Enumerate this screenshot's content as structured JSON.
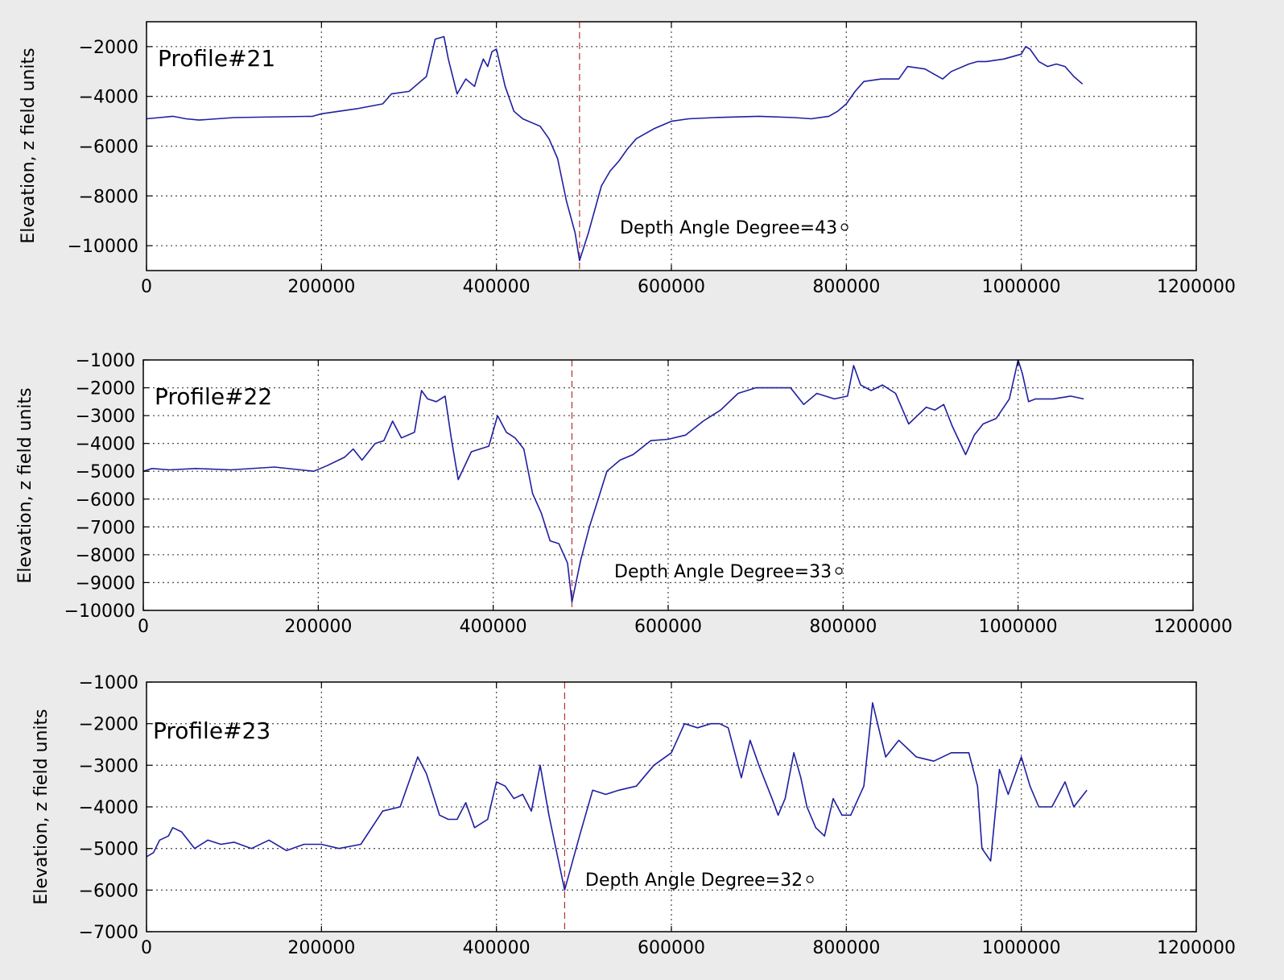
{
  "chart_data": [
    {
      "type": "line",
      "title": "Profile#21",
      "ylabel": "Elevation, z field units",
      "xlabel": "",
      "xlim": [
        0,
        1200000
      ],
      "ylim": [
        -11000,
        -1000
      ],
      "xticks": [
        "0",
        "200000",
        "400000",
        "600000",
        "800000",
        "1000000",
        "1200000"
      ],
      "yticks": [
        "−2000",
        "−4000",
        "−6000",
        "−8000",
        "−10000"
      ],
      "ytick_values": [
        -2000,
        -4000,
        -6000,
        -8000,
        -10000
      ],
      "grid": true,
      "vline_x": 495000,
      "annotation": "Depth Angle Degree=43",
      "series": [
        {
          "color": "#1f1fa0",
          "x": [
            0,
            15000,
            30000,
            45000,
            60000,
            100000,
            190000,
            200000,
            240000,
            270000,
            280000,
            300000,
            320000,
            330000,
            340000,
            345000,
            355000,
            365000,
            375000,
            380000,
            385000,
            390000,
            395000,
            400000,
            410000,
            420000,
            430000,
            450000,
            460000,
            470000,
            480000,
            490000,
            495000,
            505000,
            520000,
            530000,
            540000,
            550000,
            560000,
            580000,
            600000,
            620000,
            650000,
            700000,
            740000,
            760000,
            780000,
            790000,
            800000,
            810000,
            820000,
            840000,
            860000,
            870000,
            890000,
            900000,
            910000,
            920000,
            940000,
            950000,
            960000,
            980000,
            1000000,
            1005000,
            1010000,
            1020000,
            1030000,
            1040000,
            1050000,
            1060000,
            1070000
          ],
          "y": [
            -4900,
            -4850,
            -4800,
            -4900,
            -4950,
            -4850,
            -4800,
            -4700,
            -4500,
            -4300,
            -3900,
            -3800,
            -3200,
            -1700,
            -1600,
            -2500,
            -3900,
            -3300,
            -3600,
            -3000,
            -2500,
            -2800,
            -2200,
            -2100,
            -3600,
            -4600,
            -4900,
            -5200,
            -5700,
            -6500,
            -8200,
            -9500,
            -10600,
            -9500,
            -7600,
            -7000,
            -6600,
            -6100,
            -5700,
            -5300,
            -5000,
            -4900,
            -4850,
            -4800,
            -4850,
            -4900,
            -4800,
            -4600,
            -4300,
            -3800,
            -3400,
            -3300,
            -3300,
            -2800,
            -2900,
            -3100,
            -3300,
            -3000,
            -2700,
            -2600,
            -2600,
            -2500,
            -2300,
            -2000,
            -2100,
            -2600,
            -2800,
            -2700,
            -2800,
            -3200,
            -3500
          ]
        }
      ]
    },
    {
      "type": "line",
      "title": "Profile#22",
      "ylabel": "Elevation, z field units",
      "xlabel": "",
      "xlim": [
        0,
        1200000
      ],
      "ylim": [
        -10000,
        -1000
      ],
      "xticks": [
        "0",
        "200000",
        "400000",
        "600000",
        "800000",
        "1000000",
        "1200000"
      ],
      "yticks": [
        "−1000",
        "−2000",
        "−3000",
        "−4000",
        "−5000",
        "−6000",
        "−7000",
        "−8000",
        "−9000",
        "−10000"
      ],
      "ytick_values": [
        -1000,
        -2000,
        -3000,
        -4000,
        -5000,
        -6000,
        -7000,
        -8000,
        -9000,
        -10000
      ],
      "grid": true,
      "vline_x": 490000,
      "annotation": "Depth Angle Degree=33",
      "series": [
        {
          "color": "#1f1fa0",
          "x": [
            0,
            10000,
            30000,
            60000,
            100000,
            150000,
            180000,
            195000,
            210000,
            230000,
            240000,
            250000,
            265000,
            275000,
            285000,
            295000,
            310000,
            318000,
            325000,
            335000,
            345000,
            352000,
            360000,
            375000,
            395000,
            405000,
            415000,
            425000,
            435000,
            445000,
            455000,
            465000,
            475000,
            485000,
            490000,
            500000,
            510000,
            520000,
            530000,
            545000,
            560000,
            580000,
            600000,
            620000,
            640000,
            660000,
            680000,
            700000,
            720000,
            740000,
            755000,
            770000,
            790000,
            805000,
            812000,
            820000,
            832000,
            845000,
            860000,
            875000,
            885000,
            895000,
            905000,
            915000,
            925000,
            940000,
            950000,
            960000,
            975000,
            990000,
            1000000,
            1005000,
            1012000,
            1020000,
            1040000,
            1060000,
            1075000
          ],
          "y": [
            -5000,
            -4900,
            -4950,
            -4900,
            -4950,
            -4850,
            -4950,
            -5000,
            -4800,
            -4500,
            -4200,
            -4600,
            -4000,
            -3900,
            -3200,
            -3800,
            -3600,
            -2100,
            -2400,
            -2500,
            -2300,
            -3800,
            -5300,
            -4300,
            -4100,
            -3000,
            -3600,
            -3800,
            -4200,
            -5800,
            -6500,
            -7500,
            -7600,
            -8300,
            -9700,
            -8200,
            -7000,
            -6000,
            -5000,
            -4600,
            -4400,
            -3900,
            -3850,
            -3700,
            -3200,
            -2800,
            -2200,
            -2000,
            -2000,
            -2000,
            -2600,
            -2200,
            -2400,
            -2300,
            -1200,
            -1900,
            -2100,
            -1900,
            -2200,
            -3300,
            -3000,
            -2700,
            -2800,
            -2600,
            -3400,
            -4400,
            -3700,
            -3300,
            -3100,
            -2400,
            -1000,
            -1500,
            -2500,
            -2400,
            -2400,
            -2300,
            -2400
          ]
        }
      ]
    },
    {
      "type": "line",
      "title": "Profile#23",
      "ylabel": "Elevation, z field units",
      "xlabel": "",
      "xlim": [
        0,
        1200000
      ],
      "ylim": [
        -7000,
        -1000
      ],
      "xticks": [
        "0",
        "200000",
        "400000",
        "600000",
        "800000",
        "1000000",
        "1200000"
      ],
      "yticks": [
        "−1000",
        "−2000",
        "−3000",
        "−4000",
        "−5000",
        "−6000",
        "−7000"
      ],
      "ytick_values": [
        -1000,
        -2000,
        -3000,
        -4000,
        -5000,
        -6000,
        -7000
      ],
      "grid": true,
      "vline_x": 478000,
      "annotation": "Depth Angle Degree=32",
      "series": [
        {
          "color": "#1f1fa0",
          "x": [
            0,
            8000,
            15000,
            25000,
            30000,
            40000,
            55000,
            70000,
            85000,
            100000,
            120000,
            140000,
            160000,
            180000,
            200000,
            220000,
            245000,
            270000,
            290000,
            310000,
            320000,
            335000,
            345000,
            355000,
            365000,
            375000,
            390000,
            400000,
            410000,
            420000,
            430000,
            440000,
            450000,
            460000,
            470000,
            478000,
            495000,
            510000,
            525000,
            540000,
            560000,
            580000,
            600000,
            615000,
            630000,
            645000,
            655000,
            665000,
            680000,
            690000,
            700000,
            715000,
            722000,
            730000,
            740000,
            748000,
            755000,
            765000,
            775000,
            785000,
            795000,
            805000,
            820000,
            830000,
            845000,
            860000,
            880000,
            900000,
            920000,
            940000,
            950000,
            955000,
            965000,
            975000,
            985000,
            1000000,
            1010000,
            1020000,
            1035000,
            1050000,
            1060000,
            1075000
          ],
          "y": [
            -5200,
            -5100,
            -4800,
            -4700,
            -4500,
            -4600,
            -5000,
            -4800,
            -4900,
            -4850,
            -5000,
            -4800,
            -5050,
            -4900,
            -4900,
            -5000,
            -4900,
            -4100,
            -4000,
            -2800,
            -3200,
            -4200,
            -4300,
            -4300,
            -3900,
            -4500,
            -4300,
            -3400,
            -3500,
            -3800,
            -3700,
            -4100,
            -3000,
            -4200,
            -5200,
            -6000,
            -4700,
            -3600,
            -3700,
            -3600,
            -3500,
            -3000,
            -2700,
            -2000,
            -2100,
            -2000,
            -2000,
            -2100,
            -3300,
            -2400,
            -3000,
            -3800,
            -4200,
            -3800,
            -2700,
            -3300,
            -4000,
            -4500,
            -4700,
            -3800,
            -4200,
            -4200,
            -3500,
            -1500,
            -2800,
            -2400,
            -2800,
            -2900,
            -2700,
            -2700,
            -3500,
            -5000,
            -5300,
            -3100,
            -3700,
            -2800,
            -3500,
            -4000,
            -4000,
            -3400,
            -4000,
            -3600
          ]
        }
      ]
    }
  ]
}
